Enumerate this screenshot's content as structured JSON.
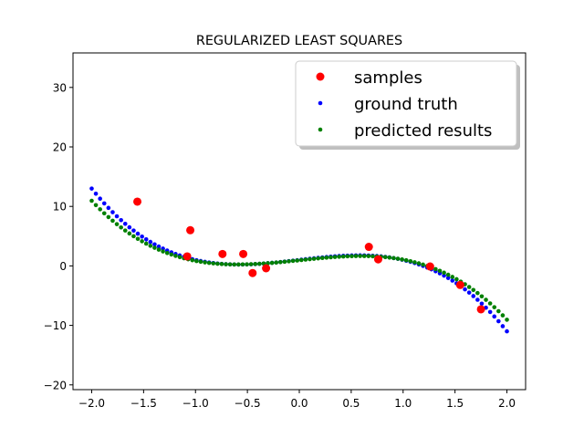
{
  "chart_data": {
    "type": "scatter",
    "title": "REGULARIZED LEAST SQUARES",
    "xlabel": "",
    "ylabel": "",
    "xlim": [
      -2.18,
      2.18
    ],
    "ylim": [
      -20.8,
      35.8
    ],
    "xticks": [
      -2.0,
      -1.5,
      -1.0,
      -0.5,
      0.0,
      0.5,
      1.0,
      1.5,
      2.0
    ],
    "xtick_labels": [
      "−2.0",
      "−1.5",
      "−1.0",
      "−0.5",
      "0.0",
      "0.5",
      "1.0",
      "1.5",
      "2.0"
    ],
    "yticks": [
      -20,
      -10,
      0,
      10,
      20,
      30
    ],
    "ytick_labels": [
      "−20",
      "−10",
      "0",
      "10",
      "20",
      "30"
    ],
    "grid": false,
    "legend_placement": "upper right",
    "series": [
      {
        "name": "samples",
        "color": "#ff0000",
        "marker": "large-dot",
        "points": [
          [
            -1.56,
            10.8
          ],
          [
            -1.05,
            6.0
          ],
          [
            -1.08,
            1.6
          ],
          [
            -0.74,
            2.0
          ],
          [
            -0.54,
            2.0
          ],
          [
            -0.45,
            -1.2
          ],
          [
            -0.32,
            -0.4
          ],
          [
            0.67,
            3.2
          ],
          [
            0.76,
            1.1
          ],
          [
            1.26,
            -0.1
          ],
          [
            1.55,
            -3.2
          ],
          [
            1.75,
            -7.3
          ]
        ]
      },
      {
        "name": "ground truth",
        "color": "#0000ff",
        "marker": "small-dot",
        "function": "cubic",
        "coefficients": [
          -2.0,
          0.0,
          2.0,
          1.0
        ],
        "x_range": [
          -2.0,
          2.0
        ],
        "num_points": 100
      },
      {
        "name": "predicted results",
        "color": "#008000",
        "marker": "small-dot",
        "function": "cubic",
        "coefficients": [
          -1.7,
          0.0,
          1.8,
          0.95
        ],
        "x_range": [
          -2.0,
          2.0
        ],
        "num_points": 100
      }
    ]
  }
}
